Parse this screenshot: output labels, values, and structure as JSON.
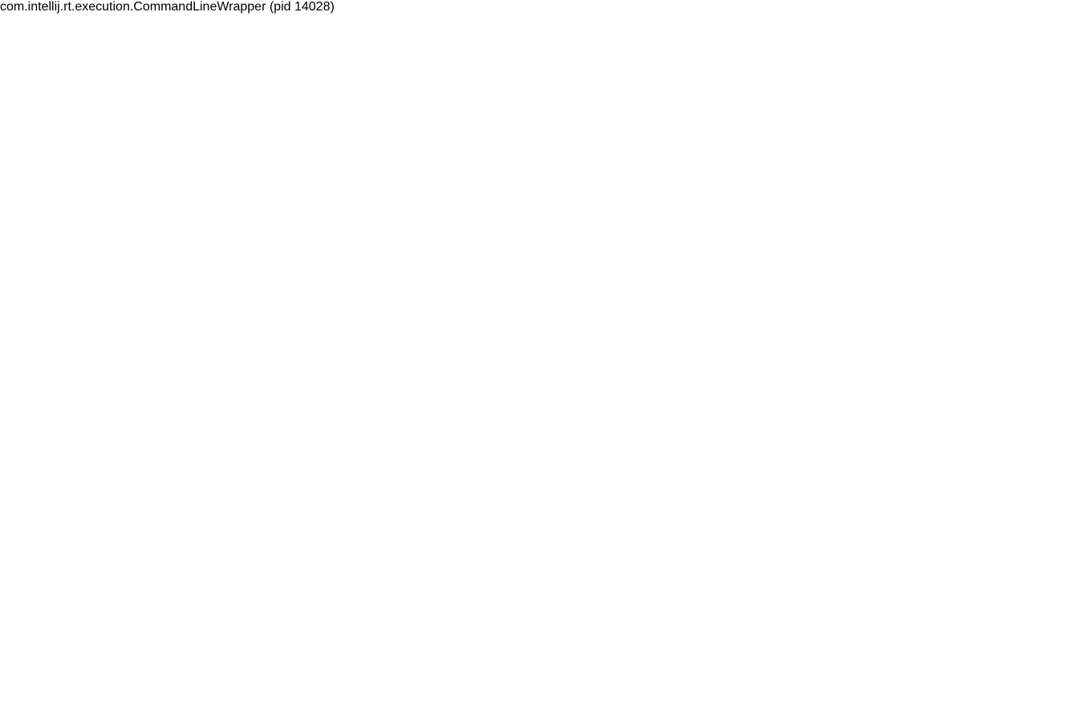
{
  "title": "com.intellij.rt.execution.CommandLineWrapper (pid 14028)"
}
